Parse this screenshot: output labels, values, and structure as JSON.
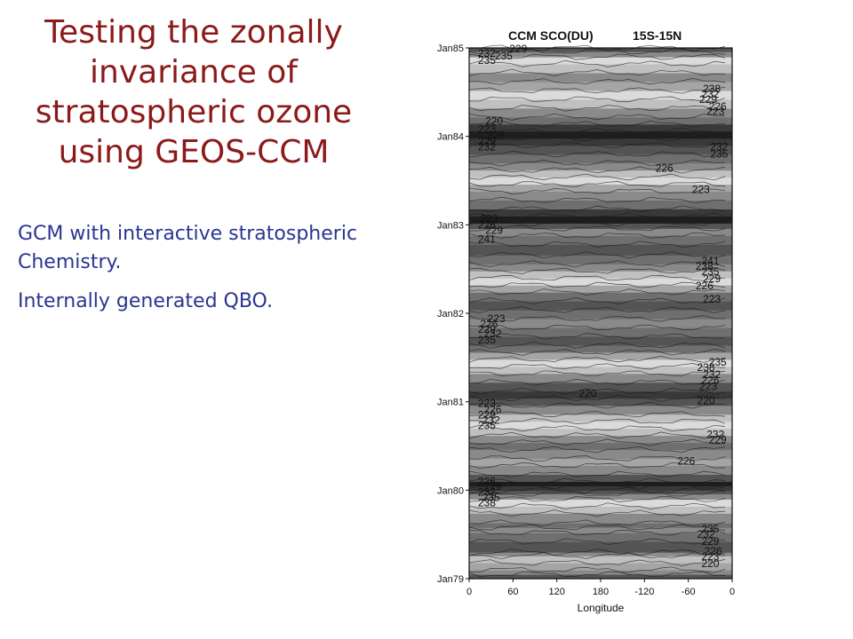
{
  "slide": {
    "title": "Testing the zonally invariance of stratospheric ozone using GEOS-CCM",
    "bullets": [
      "GCM with interactive stratospheric Chemistry.",
      "Internally generated QBO."
    ]
  },
  "colors": {
    "title": "#8b1a1a",
    "bullet_text": "#2a3590",
    "band_darkest": "#1e1e1e",
    "band_lightest": "#f6f6f6"
  },
  "chart_data": {
    "type": "heatmap",
    "title": "CCM SCO(DU)",
    "subtitle": "15S-15N",
    "xlabel": "Longitude",
    "ylabel": "",
    "x_ticks": [
      "0",
      "60",
      "120",
      "180",
      "-120",
      "-60",
      "0"
    ],
    "x_range": [
      0,
      360
    ],
    "y_ticks": [
      "Jan85",
      "Jan84",
      "Jan83",
      "Jan82",
      "Jan81",
      "Jan80",
      "Jan79"
    ],
    "y_range": [
      "Jan79",
      "Jan85"
    ],
    "time_bands": [
      {
        "t": 0.0,
        "value": 223
      },
      {
        "t": 0.05,
        "value": 229
      },
      {
        "t": 0.1,
        "value": 232
      },
      {
        "t": 0.18,
        "value": 235
      },
      {
        "t": 0.26,
        "value": 229
      },
      {
        "t": 0.3,
        "value": 223
      },
      {
        "t": 0.42,
        "value": 226
      },
      {
        "t": 0.52,
        "value": 229
      },
      {
        "t": 0.58,
        "value": 226
      },
      {
        "t": 0.63,
        "value": 229
      },
      {
        "t": 0.74,
        "value": 235
      },
      {
        "t": 0.82,
        "value": 238
      },
      {
        "t": 0.9,
        "value": 229
      },
      {
        "t": 0.96,
        "value": 223
      },
      {
        "t": 1.0,
        "value": 220
      },
      {
        "t": 1.05,
        "value": 217
      },
      {
        "t": 1.1,
        "value": 223
      },
      {
        "t": 1.18,
        "value": 229
      },
      {
        "t": 1.28,
        "value": 232
      },
      {
        "t": 1.36,
        "value": 229
      },
      {
        "t": 1.46,
        "value": 226
      },
      {
        "t": 1.54,
        "value": 229
      },
      {
        "t": 1.62,
        "value": 235
      },
      {
        "t": 1.7,
        "value": 238
      },
      {
        "t": 1.78,
        "value": 235
      },
      {
        "t": 1.86,
        "value": 229
      },
      {
        "t": 1.96,
        "value": 223
      },
      {
        "t": 2.04,
        "value": 220
      },
      {
        "t": 2.12,
        "value": 223
      },
      {
        "t": 2.22,
        "value": 229
      },
      {
        "t": 2.32,
        "value": 235
      },
      {
        "t": 2.4,
        "value": 238
      },
      {
        "t": 2.48,
        "value": 232
      },
      {
        "t": 2.56,
        "value": 226
      },
      {
        "t": 2.64,
        "value": 223
      },
      {
        "t": 2.74,
        "value": 226
      },
      {
        "t": 2.84,
        "value": 229
      },
      {
        "t": 2.94,
        "value": 226
      },
      {
        "t": 3.04,
        "value": 223
      },
      {
        "t": 3.14,
        "value": 226
      },
      {
        "t": 3.24,
        "value": 232
      },
      {
        "t": 3.32,
        "value": 238
      },
      {
        "t": 3.4,
        "value": 235
      },
      {
        "t": 3.48,
        "value": 229
      },
      {
        "t": 3.56,
        "value": 226
      },
      {
        "t": 3.66,
        "value": 223
      },
      {
        "t": 3.78,
        "value": 226
      },
      {
        "t": 3.88,
        "value": 229
      },
      {
        "t": 3.96,
        "value": 223
      },
      {
        "t": 4.02,
        "value": 217
      },
      {
        "t": 4.1,
        "value": 220
      },
      {
        "t": 4.18,
        "value": 226
      },
      {
        "t": 4.28,
        "value": 229
      },
      {
        "t": 4.38,
        "value": 232
      },
      {
        "t": 4.46,
        "value": 238
      },
      {
        "t": 4.54,
        "value": 235
      },
      {
        "t": 4.62,
        "value": 229
      },
      {
        "t": 4.7,
        "value": 226
      },
      {
        "t": 4.8,
        "value": 223
      },
      {
        "t": 4.9,
        "value": 220
      },
      {
        "t": 4.98,
        "value": 217
      },
      {
        "t": 5.06,
        "value": 220
      },
      {
        "t": 5.14,
        "value": 226
      },
      {
        "t": 5.22,
        "value": 229
      },
      {
        "t": 5.32,
        "value": 235
      },
      {
        "t": 5.42,
        "value": 238
      },
      {
        "t": 5.52,
        "value": 232
      },
      {
        "t": 5.62,
        "value": 229
      },
      {
        "t": 5.72,
        "value": 235
      },
      {
        "t": 5.82,
        "value": 238
      },
      {
        "t": 5.9,
        "value": 229
      },
      {
        "t": 5.96,
        "value": 223
      },
      {
        "t": 6.0,
        "value": 226
      }
    ],
    "contour_labels": [
      {
        "text": "229",
        "lon": 55,
        "t": 5.95
      },
      {
        "text": "232",
        "lon": 12,
        "t": 5.9
      },
      {
        "text": "235",
        "lon": 35,
        "t": 5.87
      },
      {
        "text": "235",
        "lon": 12,
        "t": 5.82
      },
      {
        "text": "238",
        "lon": 320,
        "t": 5.5
      },
      {
        "text": "232",
        "lon": 318,
        "t": 5.44
      },
      {
        "text": "229",
        "lon": 315,
        "t": 5.38
      },
      {
        "text": "226",
        "lon": 328,
        "t": 5.3
      },
      {
        "text": "223",
        "lon": 325,
        "t": 5.24
      },
      {
        "text": "220",
        "lon": 22,
        "t": 5.13
      },
      {
        "text": "223",
        "lon": 12,
        "t": 5.04
      },
      {
        "text": "226",
        "lon": 25,
        "t": 4.97
      },
      {
        "text": "229",
        "lon": 12,
        "t": 4.9
      },
      {
        "text": "232",
        "lon": 12,
        "t": 4.84
      },
      {
        "text": "232",
        "lon": 330,
        "t": 4.84
      },
      {
        "text": "235",
        "lon": 330,
        "t": 4.76
      },
      {
        "text": "226",
        "lon": 255,
        "t": 4.6
      },
      {
        "text": "223",
        "lon": 305,
        "t": 4.36
      },
      {
        "text": "223",
        "lon": 15,
        "t": 4.03
      },
      {
        "text": "226",
        "lon": 12,
        "t": 3.96
      },
      {
        "text": "229",
        "lon": 22,
        "t": 3.9
      },
      {
        "text": "241",
        "lon": 12,
        "t": 3.8
      },
      {
        "text": "241",
        "lon": 318,
        "t": 3.55
      },
      {
        "text": "238",
        "lon": 310,
        "t": 3.49
      },
      {
        "text": "235",
        "lon": 318,
        "t": 3.43
      },
      {
        "text": "229",
        "lon": 320,
        "t": 3.35
      },
      {
        "text": "226",
        "lon": 310,
        "t": 3.27
      },
      {
        "text": "223",
        "lon": 320,
        "t": 3.12
      },
      {
        "text": "223",
        "lon": 25,
        "t": 2.9
      },
      {
        "text": "226",
        "lon": 15,
        "t": 2.84
      },
      {
        "text": "229",
        "lon": 12,
        "t": 2.78
      },
      {
        "text": "232",
        "lon": 20,
        "t": 2.73
      },
      {
        "text": "235",
        "lon": 12,
        "t": 2.66
      },
      {
        "text": "235",
        "lon": 328,
        "t": 2.41
      },
      {
        "text": "238",
        "lon": 312,
        "t": 2.35
      },
      {
        "text": "232",
        "lon": 320,
        "t": 2.27
      },
      {
        "text": "226",
        "lon": 318,
        "t": 2.2
      },
      {
        "text": "223",
        "lon": 315,
        "t": 2.13
      },
      {
        "text": "220",
        "lon": 150,
        "t": 2.05
      },
      {
        "text": "220",
        "lon": 312,
        "t": 1.97
      },
      {
        "text": "223",
        "lon": 12,
        "t": 1.94
      },
      {
        "text": "226",
        "lon": 20,
        "t": 1.87
      },
      {
        "text": "229",
        "lon": 12,
        "t": 1.81
      },
      {
        "text": "232",
        "lon": 18,
        "t": 1.75
      },
      {
        "text": "235",
        "lon": 12,
        "t": 1.69
      },
      {
        "text": "232",
        "lon": 325,
        "t": 1.59
      },
      {
        "text": "229",
        "lon": 328,
        "t": 1.53
      },
      {
        "text": "226",
        "lon": 285,
        "t": 1.29
      },
      {
        "text": "226",
        "lon": 12,
        "t": 1.06
      },
      {
        "text": "229",
        "lon": 20,
        "t": 1.0
      },
      {
        "text": "232",
        "lon": 12,
        "t": 0.94
      },
      {
        "text": "235",
        "lon": 18,
        "t": 0.88
      },
      {
        "text": "238",
        "lon": 12,
        "t": 0.82
      },
      {
        "text": "235",
        "lon": 318,
        "t": 0.52
      },
      {
        "text": "232",
        "lon": 312,
        "t": 0.46
      },
      {
        "text": "229",
        "lon": 318,
        "t": 0.38
      },
      {
        "text": "226",
        "lon": 322,
        "t": 0.27
      },
      {
        "text": "223",
        "lon": 318,
        "t": 0.21
      },
      {
        "text": "220",
        "lon": 318,
        "t": 0.13
      }
    ]
  }
}
